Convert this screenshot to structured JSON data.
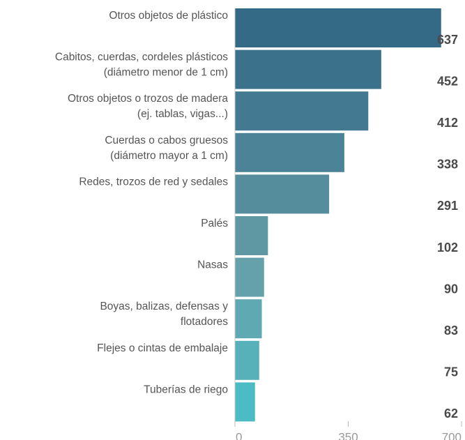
{
  "chart_data": {
    "type": "bar",
    "orientation": "horizontal",
    "categories": [
      "Otros objetos de plástico",
      "Cabitos, cuerdas, cordeles plásticos\n(diámetro menor de 1 cm)",
      "Otros objetos o trozos de madera\n(ej. tablas, vigas...)",
      "Cuerdas o cabos gruesos\n(diámetro mayor a 1 cm)",
      "Redes, trozos de red y sedales",
      "Palés",
      "Nasas",
      "Boyas, balizas, defensas y\nflotadores",
      "Flejes o cintas de embalaje",
      "Tuberías de riego"
    ],
    "values": [
      637,
      452,
      412,
      338,
      291,
      102,
      90,
      83,
      75,
      62
    ],
    "colors": [
      "#356a86",
      "#3b718b",
      "#437a91",
      "#4c8397",
      "#568d9d",
      "#5f97a3",
      "#65a1aa",
      "#5fa9b2",
      "#56b1b9",
      "#4bbcc3"
    ],
    "xlim": [
      0,
      700
    ],
    "xticks": [
      0,
      350,
      700
    ]
  }
}
